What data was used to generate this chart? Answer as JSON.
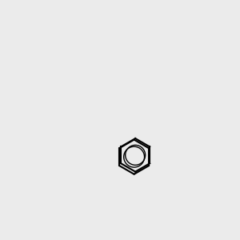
{
  "bg": "#ebebeb",
  "black": "#000000",
  "red": "#ff0000",
  "blue": "#0000cc",
  "yellow": "#cccc00",
  "dark_yellow": "#999900",
  "bond_lw": 1.5,
  "font_size": 9
}
